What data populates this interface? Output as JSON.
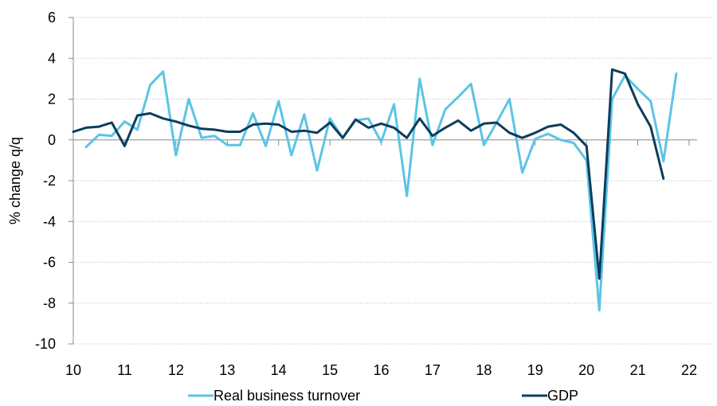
{
  "chart_data": {
    "type": "line",
    "title": "",
    "xlabel": "",
    "ylabel": "% change q/q",
    "xlim": [
      10,
      22
    ],
    "ylim": [
      -10,
      6
    ],
    "x_ticks": [
      "10",
      "11",
      "12",
      "13",
      "14",
      "15",
      "16",
      "17",
      "18",
      "19",
      "20",
      "21",
      "22"
    ],
    "y_ticks": [
      6,
      4,
      2,
      0,
      -2,
      -4,
      -6,
      -8,
      -10
    ],
    "grid": "horizontal dotted",
    "legend": "bottom",
    "series": [
      {
        "name": "Real business turnover",
        "color": "#5bc4e6",
        "x": [
          10.25,
          10.5,
          10.75,
          11,
          11.25,
          11.5,
          11.75,
          12,
          12.25,
          12.5,
          12.75,
          13,
          13.25,
          13.5,
          13.75,
          14,
          14.25,
          14.5,
          14.75,
          15,
          15.25,
          15.5,
          15.75,
          16,
          16.25,
          16.5,
          16.75,
          17,
          17.25,
          17.5,
          17.75,
          18,
          18.25,
          18.5,
          18.75,
          19,
          19.25,
          19.5,
          19.75,
          20,
          20.25,
          20.5,
          20.75,
          21,
          21.25,
          21.5,
          21.75
        ],
        "values": [
          -0.35,
          0.25,
          0.2,
          0.9,
          0.5,
          2.7,
          3.35,
          -0.75,
          2.0,
          0.1,
          0.2,
          -0.25,
          -0.25,
          1.3,
          -0.3,
          1.9,
          -0.75,
          1.25,
          -1.5,
          1.05,
          0.1,
          0.95,
          1.05,
          -0.1,
          1.75,
          -2.75,
          3.0,
          -0.25,
          1.5,
          2.1,
          2.75,
          -0.25,
          0.85,
          2.0,
          -1.6,
          0.05,
          0.3,
          0.0,
          -0.15,
          -1.0,
          -8.35,
          2.0,
          3.15,
          2.5,
          1.9,
          -1.05,
          3.25
        ]
      },
      {
        "name": "GDP",
        "color": "#0d3d5c",
        "x": [
          10,
          10.25,
          10.5,
          10.75,
          11,
          11.25,
          11.5,
          11.75,
          12,
          12.25,
          12.5,
          12.75,
          13,
          13.25,
          13.5,
          13.75,
          14,
          14.25,
          14.5,
          14.75,
          15,
          15.25,
          15.5,
          15.75,
          16,
          16.25,
          16.5,
          16.75,
          17,
          17.25,
          17.5,
          17.75,
          18,
          18.25,
          18.5,
          18.75,
          19,
          19.25,
          19.5,
          19.75,
          20,
          20.25,
          20.5,
          20.75,
          21,
          21.25,
          21.5
        ],
        "values": [
          0.4,
          0.6,
          0.65,
          0.85,
          -0.3,
          1.2,
          1.3,
          1.05,
          0.9,
          0.7,
          0.55,
          0.5,
          0.4,
          0.4,
          0.75,
          0.8,
          0.75,
          0.4,
          0.45,
          0.35,
          0.85,
          0.1,
          1.0,
          0.6,
          0.8,
          0.6,
          0.1,
          1.05,
          0.2,
          0.6,
          0.95,
          0.45,
          0.8,
          0.85,
          0.35,
          0.1,
          0.35,
          0.65,
          0.75,
          0.35,
          -0.3,
          -6.8,
          3.45,
          3.25,
          1.75,
          0.65,
          -1.9
        ]
      }
    ]
  }
}
